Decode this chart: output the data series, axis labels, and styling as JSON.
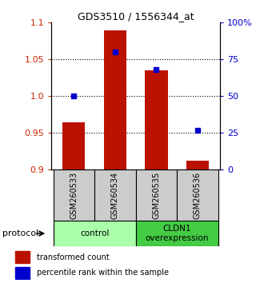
{
  "title": "GDS3510 / 1556344_at",
  "samples": [
    "GSM260533",
    "GSM260534",
    "GSM260535",
    "GSM260536"
  ],
  "transformed_counts": [
    0.965,
    1.09,
    1.035,
    0.912
  ],
  "percentile_ranks": [
    50,
    80,
    68,
    27
  ],
  "bar_baseline": 0.9,
  "ylim_left": [
    0.9,
    1.1
  ],
  "ylim_right": [
    0,
    100
  ],
  "yticks_left": [
    0.9,
    0.95,
    1.0,
    1.05,
    1.1
  ],
  "yticks_right": [
    0,
    25,
    50,
    75,
    100
  ],
  "ytick_labels_right": [
    "0",
    "25",
    "50",
    "75",
    "100%"
  ],
  "hlines": [
    0.95,
    1.0,
    1.05
  ],
  "bar_color": "#bb1100",
  "dot_color": "#0000cc",
  "bar_width": 0.55,
  "groups": [
    {
      "label": "control",
      "indices": [
        0,
        1
      ],
      "color": "#aaffaa"
    },
    {
      "label": "CLDN1\noverexpression",
      "indices": [
        2,
        3
      ],
      "color": "#44cc44"
    }
  ],
  "sample_box_color": "#cccccc",
  "background_color": "#ffffff",
  "protocol_label": "protocol"
}
